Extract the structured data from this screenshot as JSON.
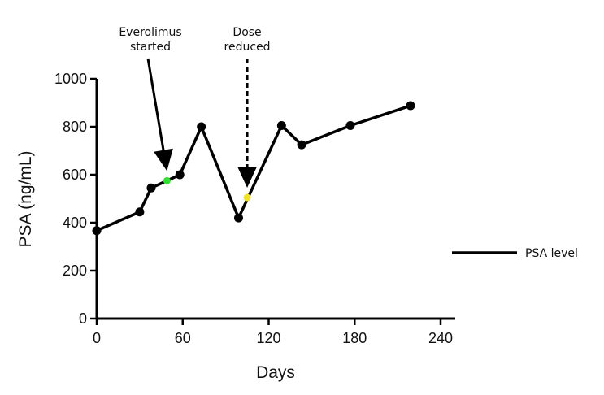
{
  "chart_data": {
    "type": "line",
    "title": "",
    "xlabel": "Days",
    "ylabel": "PSA (ng/mL)",
    "xlim": [
      0,
      240
    ],
    "ylim": [
      0,
      1000
    ],
    "xticks": [
      0,
      60,
      120,
      180,
      240
    ],
    "xtick_labels": [
      "0",
      "60",
      "120",
      "180",
      "240"
    ],
    "yticks": [
      0,
      200,
      400,
      600,
      800,
      1000
    ],
    "ytick_labels": [
      "0",
      "200",
      "400",
      "600",
      "800",
      "1000"
    ],
    "grid": false,
    "legend_position": "right",
    "series": [
      {
        "name": "PSA level",
        "color": "#000000",
        "x": [
          0,
          30,
          38,
          49,
          58,
          73,
          99,
          129,
          143,
          177,
          219
        ],
        "y": [
          367,
          445,
          545,
          575,
          600,
          800,
          420,
          805,
          725,
          805,
          888
        ]
      }
    ],
    "highlight_points": [
      {
        "x": 49,
        "y": 575,
        "color": "#33dd33"
      },
      {
        "x": 105,
        "y": 505,
        "color": "#f2e22a"
      }
    ],
    "annotations": [
      {
        "lines": [
          "Everolimus",
          "started"
        ],
        "x": 49,
        "y": 575,
        "style": "solid"
      },
      {
        "lines": [
          "Dose",
          "reduced"
        ],
        "x": 105,
        "y": 505,
        "style": "dashed"
      }
    ]
  }
}
